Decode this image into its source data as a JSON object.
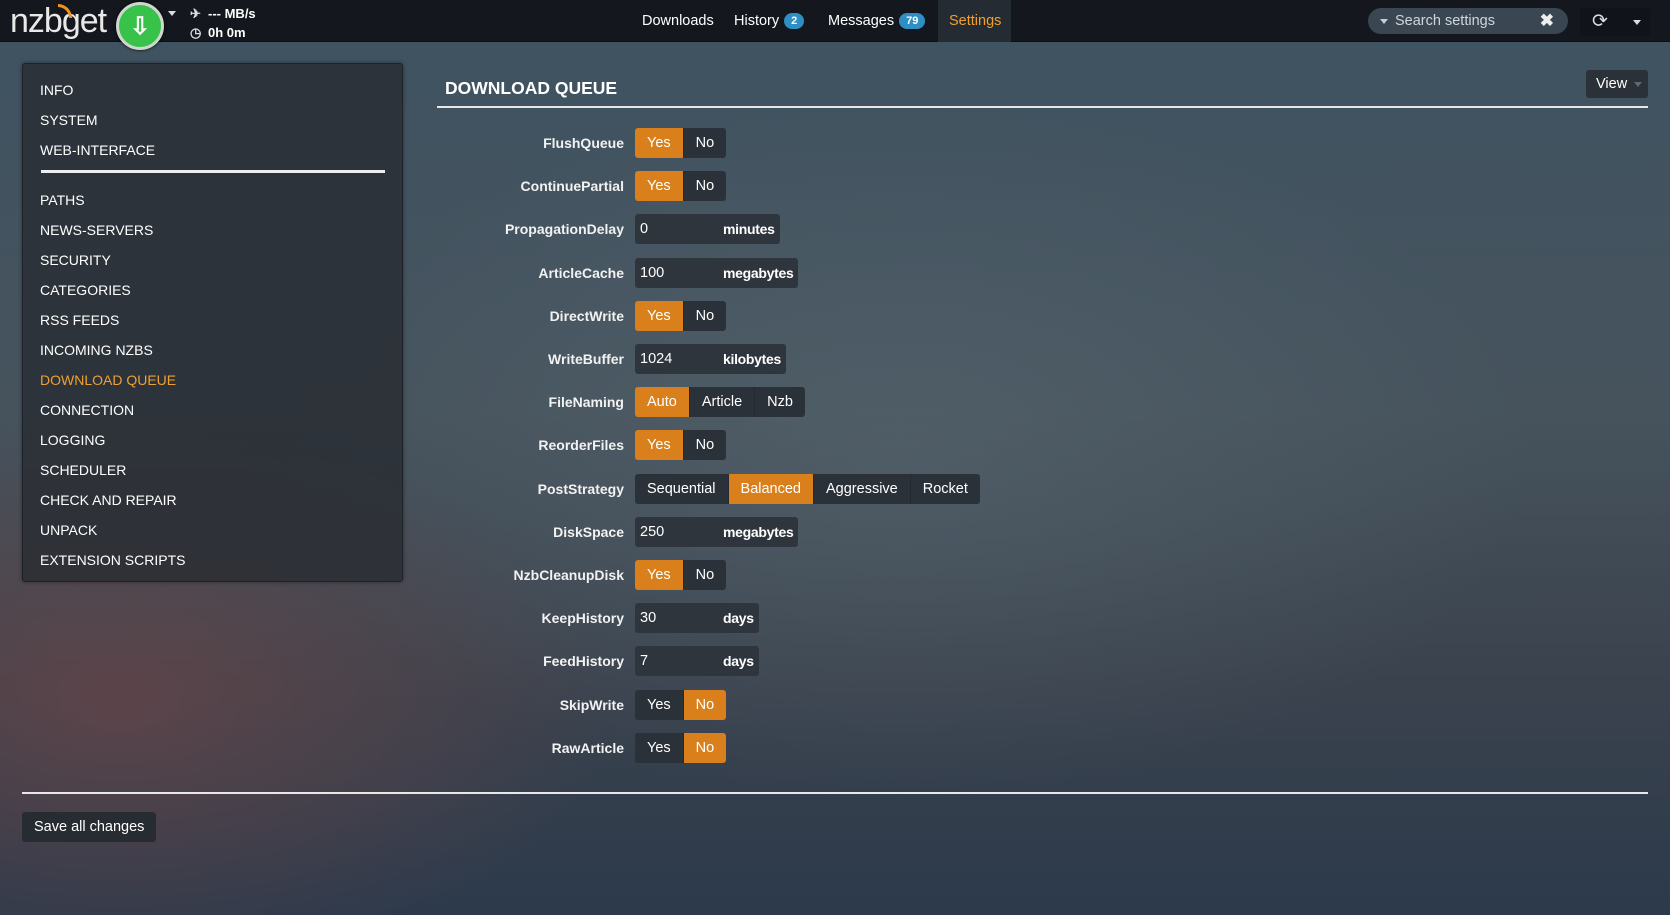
{
  "navbar": {
    "logo": "nzbget",
    "speed": "--- MB/s",
    "time": "0h 0m",
    "menu": [
      {
        "label": "Downloads"
      },
      {
        "label": "History",
        "badge": "2"
      },
      {
        "label": "Messages",
        "badge": "79"
      },
      {
        "label": "Settings",
        "active": true
      }
    ],
    "search_placeholder": "Search settings"
  },
  "sidebar": {
    "items": [
      "INFO",
      "SYSTEM",
      "WEB-INTERFACE",
      "PATHS",
      "NEWS-SERVERS",
      "SECURITY",
      "CATEGORIES",
      "RSS FEEDS",
      "INCOMING NZBS",
      "DOWNLOAD QUEUE",
      "CONNECTION",
      "LOGGING",
      "SCHEDULER",
      "CHECK AND REPAIR",
      "UNPACK",
      "EXTENSION SCRIPTS"
    ],
    "active": "DOWNLOAD QUEUE"
  },
  "section": {
    "title": "DOWNLOAD QUEUE",
    "view_label": "View"
  },
  "options": [
    {
      "name": "FlushQueue",
      "type": "switch",
      "choices": [
        "Yes",
        "No"
      ],
      "value": "Yes"
    },
    {
      "name": "ContinuePartial",
      "type": "switch",
      "choices": [
        "Yes",
        "No"
      ],
      "value": "Yes"
    },
    {
      "name": "PropagationDelay",
      "type": "number",
      "value": "0",
      "unit": "minutes"
    },
    {
      "name": "ArticleCache",
      "type": "number",
      "value": "100",
      "unit": "megabytes"
    },
    {
      "name": "DirectWrite",
      "type": "switch",
      "choices": [
        "Yes",
        "No"
      ],
      "value": "Yes"
    },
    {
      "name": "WriteBuffer",
      "type": "number",
      "value": "1024",
      "unit": "kilobytes"
    },
    {
      "name": "FileNaming",
      "type": "switch",
      "choices": [
        "Auto",
        "Article",
        "Nzb"
      ],
      "value": "Auto"
    },
    {
      "name": "ReorderFiles",
      "type": "switch",
      "choices": [
        "Yes",
        "No"
      ],
      "value": "Yes"
    },
    {
      "name": "PostStrategy",
      "type": "switch",
      "choices": [
        "Sequential",
        "Balanced",
        "Aggressive",
        "Rocket"
      ],
      "value": "Balanced"
    },
    {
      "name": "DiskSpace",
      "type": "number",
      "value": "250",
      "unit": "megabytes"
    },
    {
      "name": "NzbCleanupDisk",
      "type": "switch",
      "choices": [
        "Yes",
        "No"
      ],
      "value": "Yes"
    },
    {
      "name": "KeepHistory",
      "type": "number",
      "value": "30",
      "unit": "days"
    },
    {
      "name": "FeedHistory",
      "type": "number",
      "value": "7",
      "unit": "days"
    },
    {
      "name": "SkipWrite",
      "type": "switch",
      "choices": [
        "Yes",
        "No"
      ],
      "value": "No"
    },
    {
      "name": "RawArticle",
      "type": "switch",
      "choices": [
        "Yes",
        "No"
      ],
      "value": "No"
    }
  ],
  "footer": {
    "save_label": "Save all changes"
  },
  "colors": {
    "accent": "#d9801c",
    "active_text": "#f0a030",
    "badge": "#2f8ec4",
    "download_button": "#38c24a"
  }
}
